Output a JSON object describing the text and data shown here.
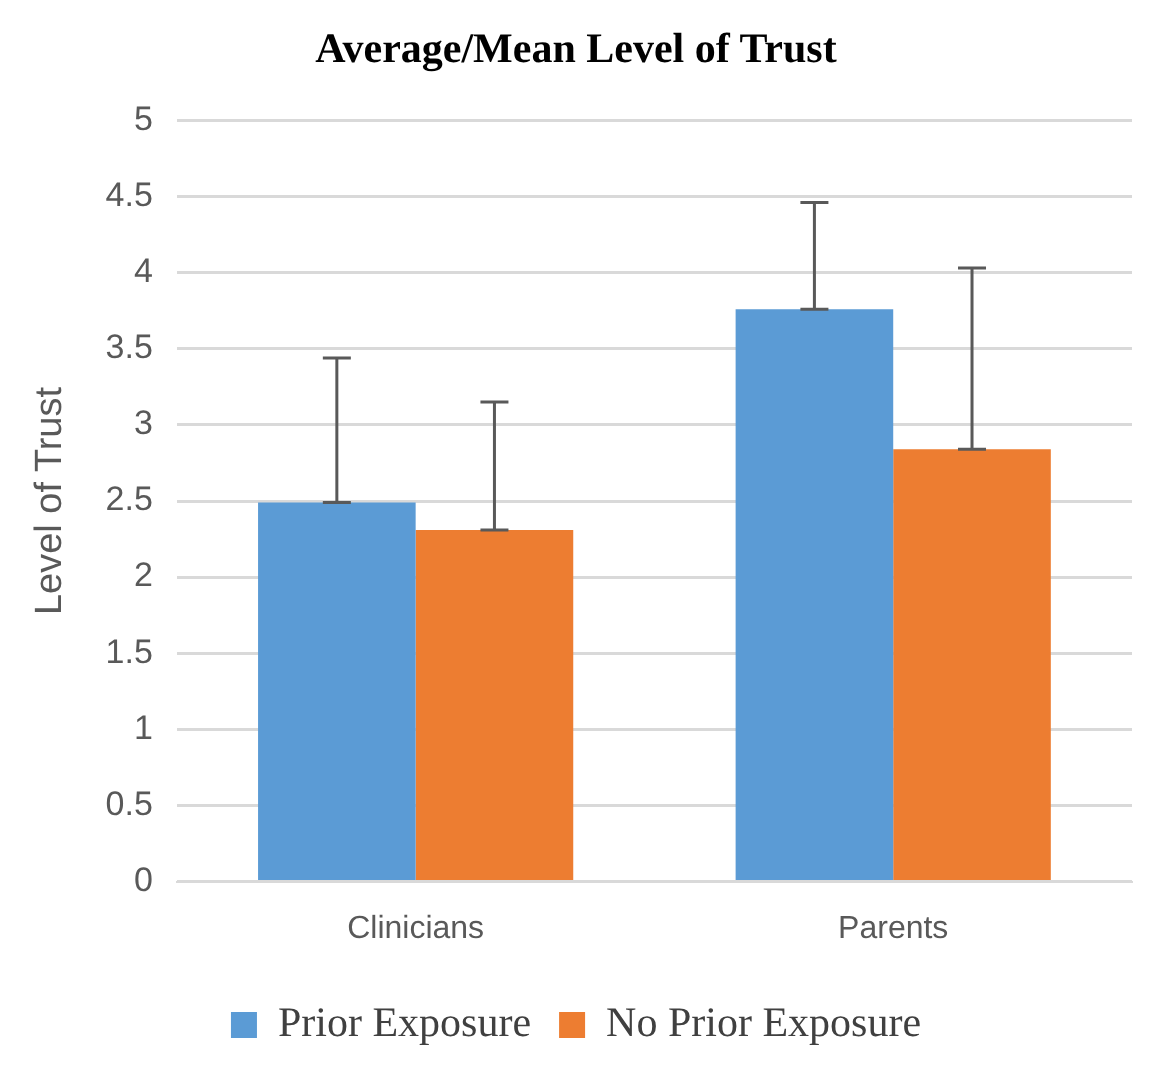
{
  "chart_data": {
    "type": "bar",
    "title": "Average/Mean Level of Trust",
    "ylabel": "Level of Trust",
    "categories": [
      "Clinicians",
      "Parents"
    ],
    "series": [
      {
        "name": "Prior Exposure",
        "color": "#5b9bd5",
        "values": [
          2.49,
          3.76
        ],
        "errors": [
          [
            2.49,
            3.44
          ],
          [
            3.76,
            4.46
          ]
        ]
      },
      {
        "name": "No Prior Exposure",
        "color": "#ed7d31",
        "values": [
          2.31,
          2.84
        ],
        "errors": [
          [
            2.31,
            3.15
          ],
          [
            2.84,
            4.03
          ]
        ]
      }
    ],
    "ylim": [
      0,
      5
    ],
    "yticks": [
      0,
      0.5,
      1,
      1.5,
      2,
      2.5,
      3,
      3.5,
      4,
      4.5,
      5
    ],
    "grid": "y",
    "legend": "bottom"
  }
}
